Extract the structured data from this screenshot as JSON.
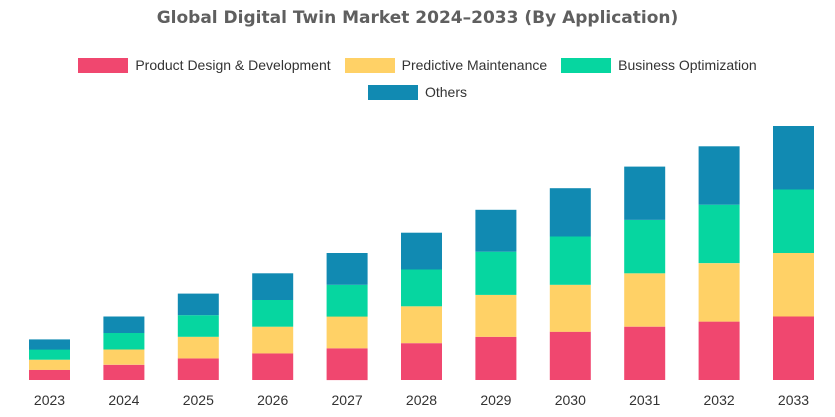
{
  "chart_data": {
    "type": "bar",
    "stacked": true,
    "title": "Global Digital Twin Market 2024–2033 (By Application)",
    "xlabel": "",
    "ylabel": "",
    "ylim": [
      0,
      100
    ],
    "grid": false,
    "legend_position": "top-center",
    "categories": [
      "2023",
      "2024",
      "2025",
      "2026",
      "2027",
      "2028",
      "2029",
      "2030",
      "2031",
      "2032",
      "2033"
    ],
    "series": [
      {
        "name": "Product Design & Development",
        "color": "#f0476f",
        "values": [
          4,
          6,
          8.5,
          10.5,
          12.5,
          14.5,
          17,
          19,
          21,
          23,
          25
        ]
      },
      {
        "name": "Predictive Maintenance",
        "color": "#ffd166",
        "values": [
          4,
          6,
          8.5,
          10.5,
          12.5,
          14.5,
          16.5,
          18.5,
          21,
          23,
          25
        ]
      },
      {
        "name": "Business Optimization",
        "color": "#06d6a0",
        "values": [
          4,
          6.5,
          8.5,
          10.5,
          12.5,
          14.5,
          17,
          19,
          21,
          23,
          25
        ]
      },
      {
        "name": "Others",
        "color": "#118ab2",
        "values": [
          4,
          6.5,
          8.5,
          10.5,
          12.5,
          14.5,
          16.5,
          19,
          21,
          23,
          25
        ]
      }
    ]
  }
}
